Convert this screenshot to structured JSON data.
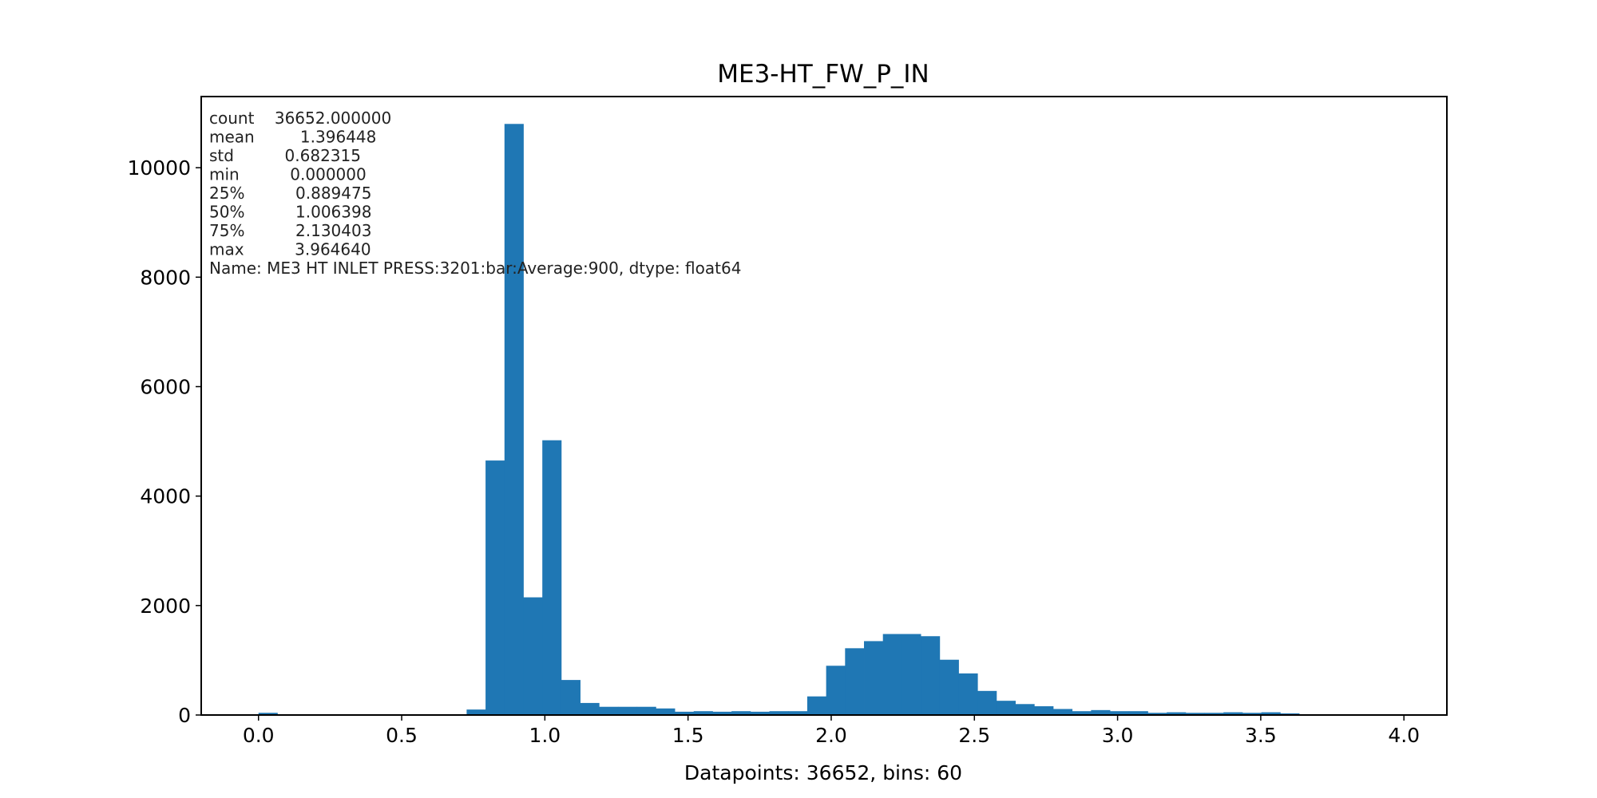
{
  "chart_data": {
    "type": "bar",
    "title": "ME3-HT_FW_P_IN",
    "xlabel": "Datapoints: 36652, bins: 60",
    "ylabel": "",
    "bar_color": "#1f77b4",
    "xlim": [
      -0.2,
      4.15
    ],
    "ylim": [
      0,
      11300
    ],
    "x_ticks": [
      0.0,
      0.5,
      1.0,
      1.5,
      2.0,
      2.5,
      3.0,
      3.5,
      4.0
    ],
    "x_tick_labels": [
      "0.0",
      "0.5",
      "1.0",
      "1.5",
      "2.0",
      "2.5",
      "3.0",
      "3.5",
      "4.0"
    ],
    "y_ticks": [
      0,
      2000,
      4000,
      6000,
      8000,
      10000
    ],
    "y_tick_labels": [
      "0",
      "2000",
      "4000",
      "6000",
      "8000",
      "10000"
    ],
    "bin_start": 0.0,
    "bin_width": 0.066077,
    "counts": [
      40,
      0,
      0,
      0,
      0,
      0,
      0,
      0,
      0,
      0,
      0,
      100,
      4650,
      10800,
      2150,
      5020,
      640,
      220,
      150,
      150,
      150,
      120,
      60,
      70,
      60,
      70,
      60,
      70,
      70,
      340,
      900,
      1220,
      1350,
      1480,
      1480,
      1440,
      1010,
      760,
      440,
      260,
      200,
      160,
      110,
      70,
      90,
      70,
      70,
      40,
      50,
      40,
      40,
      50,
      40,
      50,
      30,
      0,
      0,
      0,
      0,
      0
    ],
    "stats_lines": [
      "count    36652.000000",
      "mean         1.396448",
      "std          0.682315",
      "min          0.000000",
      "25%          0.889475",
      "50%          1.006398",
      "75%          2.130403",
      "max          3.964640",
      "Name: ME3 HT INLET PRESS:3201:bar:Average:900, dtype: float64"
    ]
  }
}
